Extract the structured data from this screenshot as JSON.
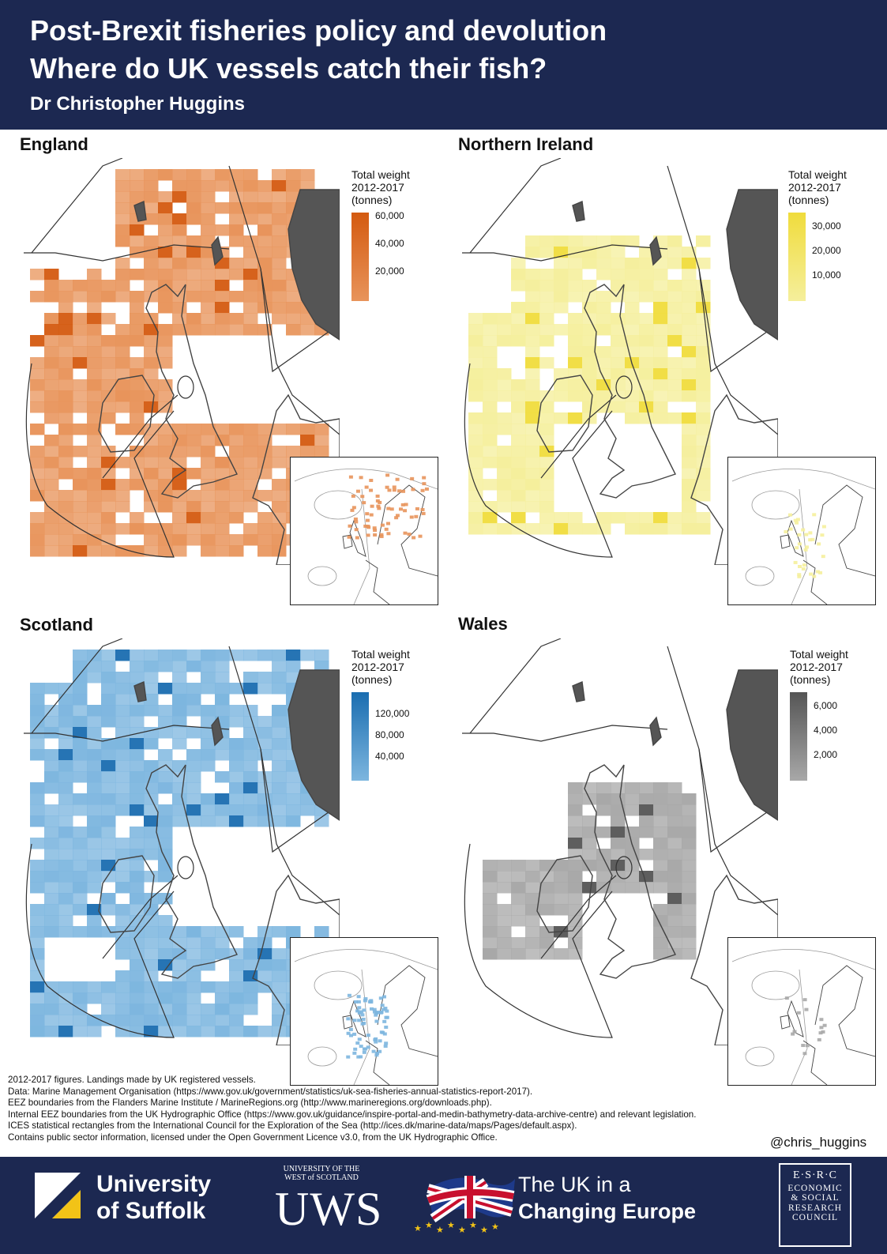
{
  "header": {
    "title_line1": "Post-Brexit fisheries policy and devolution",
    "title_line2": "Where do UK vessels catch their fish?",
    "author": "Dr Christopher Huggins"
  },
  "colors": {
    "header_bg": "#1c2851",
    "england": "#e8945b",
    "northern_ireland": "#f5ef9c",
    "scotland": "#7db6df",
    "wales": "#a8a8a8"
  },
  "panels": [
    {
      "id": "england",
      "title": "England",
      "legend_title": [
        "Total weight",
        "2012-2017",
        "(tonnes)"
      ],
      "ticks": [
        "60,000",
        "40,000",
        "20,000"
      ],
      "fill": "#e8945b",
      "dark": "#d45a10"
    },
    {
      "id": "northern-ireland",
      "title": "Northern Ireland",
      "legend_title": [
        "Total weight",
        "2012-2017",
        "(tonnes)"
      ],
      "ticks": [
        "30,000",
        "20,000",
        "10,000"
      ],
      "fill": "#f5ef9c",
      "dark": "#f0dc3c"
    },
    {
      "id": "scotland",
      "title": "Scotland",
      "legend_title": [
        "Total weight",
        "2012-2017",
        "(tonnes)"
      ],
      "ticks": [
        "120,000",
        "80,000",
        "40,000"
      ],
      "fill": "#7db6df",
      "dark": "#1a6db0"
    },
    {
      "id": "wales",
      "title": "Wales",
      "legend_title": [
        "Total weight",
        "2012-2017",
        "(tonnes)"
      ],
      "ticks": [
        "6,000",
        "4,000",
        "2,000"
      ],
      "fill": "#a8a8a8",
      "dark": "#555555"
    }
  ],
  "notes": [
    "2012-2017 figures. Landings made by UK registered vessels.",
    "Data: Marine Management Organisation (https://www.gov.uk/government/statistics/uk-sea-fisheries-annual-statistics-report-2017).",
    "EEZ boundaries from the Flanders Marine Institute / MarineRegions.org (http://www.marineregions.org/downloads.php).",
    "Internal EEZ boundaries from the UK Hydrographic Office (https://www.gov.uk/guidance/inspire-portal-and-medin-bathymetry-data-archive-centre) and relevant legislation.",
    "ICES statistical rectangles from the International Council for the Exploration of the Sea (http://ices.dk/marine-data/maps/Pages/default.aspx).",
    "Contains public sector information, licensed under the Open Government Licence v3.0, from the UK Hydrographic Office."
  ],
  "handle": "@chris_huggins",
  "footer": {
    "suffolk_line1": "University",
    "suffolk_line2": "of Suffolk",
    "uws_top1": "UNIVERSITY OF THE",
    "uws_top2": "WEST of SCOTLAND",
    "uws": "UWS",
    "ukce_line1": "The UK in a",
    "ukce_line2": "Changing Europe",
    "esrc_lines": [
      "E·S·R·C",
      "ECONOMIC",
      "& SOCIAL",
      "RESEARCH",
      "COUNCIL"
    ]
  }
}
